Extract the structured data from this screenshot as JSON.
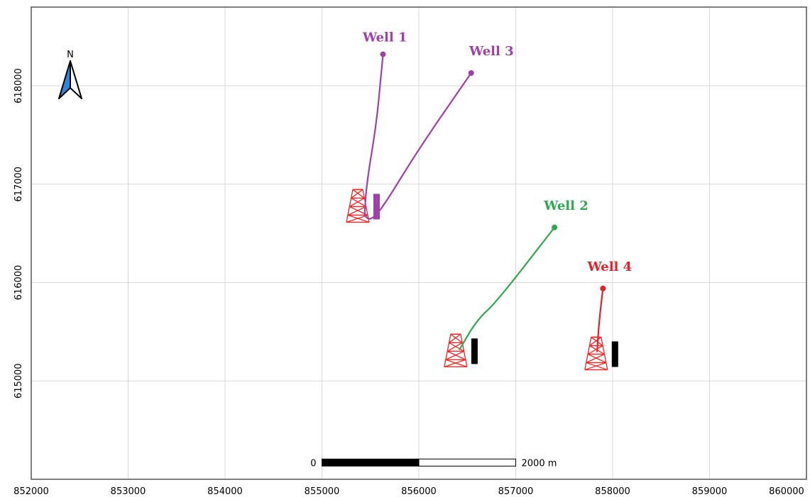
{
  "map": {
    "x_ticks": [
      "852000",
      "853000",
      "854000",
      "855000",
      "856000",
      "857000",
      "858000",
      "859000",
      "860000"
    ],
    "y_ticks": [
      "618000",
      "617000",
      "616000",
      "615000"
    ],
    "x_range": [
      852000,
      860000
    ],
    "y_range": [
      614000,
      618800
    ],
    "grid": true,
    "colors": {
      "grid": "#d9d9d9",
      "frame": "#555555",
      "rig": "#ff2020",
      "north_arrow": "#2e86de"
    }
  },
  "north_arrow": {
    "label": "N",
    "icon": "north-arrow-icon"
  },
  "scale_bar": {
    "start_label": "0",
    "end_label": "2000 m",
    "from_x": 855000,
    "to_x": 857000,
    "y": 614170
  },
  "wells": [
    {
      "name": "Well 1",
      "color": "#a040a8",
      "path": [
        [
          855440,
          616680
        ],
        [
          855460,
          617000
        ],
        [
          855560,
          617600
        ],
        [
          855610,
          618100
        ],
        [
          855630,
          618320
        ]
      ],
      "label_at": [
        855420,
        618450
      ]
    },
    {
      "name": "Well 3",
      "color": "#a040a8",
      "path": [
        [
          855440,
          616680
        ],
        [
          855500,
          616630
        ],
        [
          855620,
          616750
        ],
        [
          856000,
          617360
        ],
        [
          856540,
          618130
        ]
      ],
      "label_at": [
        856520,
        618310
      ]
    },
    {
      "name": "Well 2",
      "color": "#2fa84f",
      "path": [
        [
          856420,
          615320
        ],
        [
          856600,
          615620
        ],
        [
          856800,
          615800
        ],
        [
          857400,
          616560
        ]
      ],
      "label_at": [
        857290,
        616740
      ]
    },
    {
      "name": "Well 4",
      "color": "#e8202a",
      "path": [
        [
          857840,
          615300
        ],
        [
          857860,
          615600
        ],
        [
          857900,
          615940
        ]
      ],
      "label_at": [
        857740,
        616120
      ]
    }
  ],
  "rigs": [
    {
      "x": 855370,
      "y": 616750,
      "bar_color": "#a040a8"
    },
    {
      "x": 856380,
      "y": 615280,
      "bar_color": "#000000"
    },
    {
      "x": 857830,
      "y": 615250,
      "bar_color": "#000000"
    }
  ]
}
